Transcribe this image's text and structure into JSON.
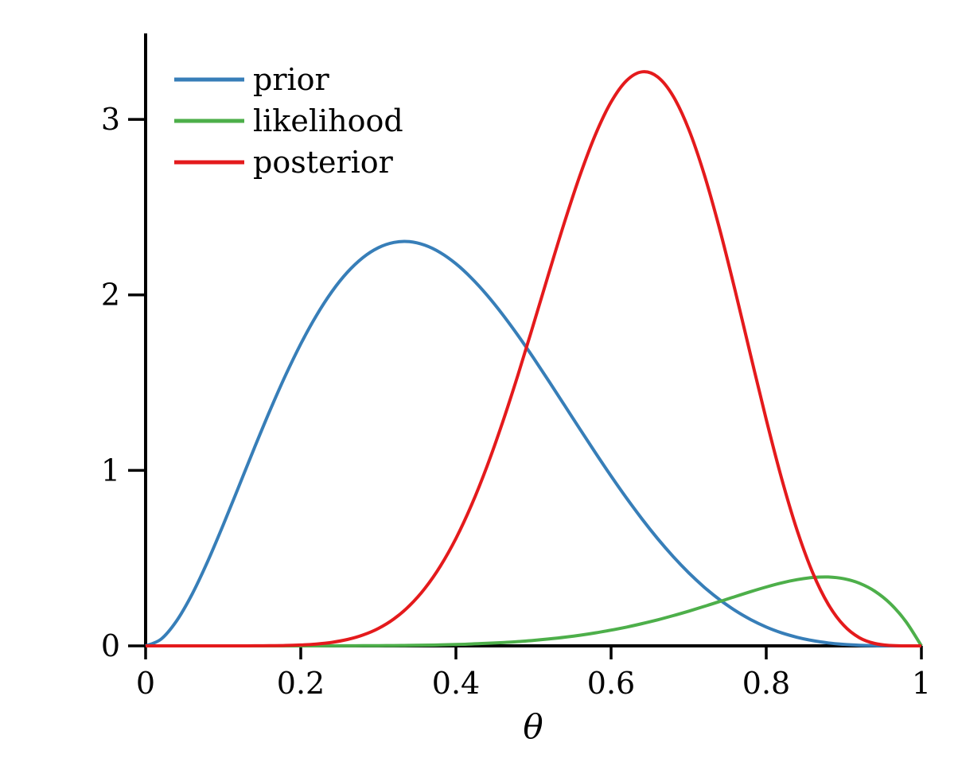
{
  "figure": {
    "background_color": "#ffffff",
    "axis_color": "#000000",
    "text_color": "#000000"
  },
  "chart_data": {
    "type": "line",
    "title": "",
    "xlabel": "θ",
    "ylabel": "",
    "xlim": [
      0,
      1
    ],
    "ylim": [
      0,
      3.49
    ],
    "grid": false,
    "legend_position": "top-left",
    "x_ticks": {
      "values": [
        0,
        0.2,
        0.4,
        0.6,
        0.8,
        1
      ],
      "labels": [
        "0",
        "0.2",
        "0.4",
        "0.6",
        "0.8",
        "1"
      ]
    },
    "y_ticks": {
      "values": [
        0,
        1,
        2,
        3
      ],
      "labels": [
        "0",
        "1",
        "2",
        "3"
      ]
    },
    "x": [
      0,
      0.02,
      0.04,
      0.06,
      0.08,
      0.1,
      0.12,
      0.14,
      0.16,
      0.18,
      0.2,
      0.22,
      0.24,
      0.26,
      0.28,
      0.3,
      0.32,
      0.34,
      0.36,
      0.38,
      0.4,
      0.42,
      0.44,
      0.46,
      0.48,
      0.5,
      0.52,
      0.54,
      0.56,
      0.58,
      0.6,
      0.62,
      0.64,
      0.66,
      0.68,
      0.7,
      0.72,
      0.74,
      0.76,
      0.78,
      0.8,
      0.82,
      0.84,
      0.86,
      0.88,
      0.9,
      0.92,
      0.94,
      0.96,
      0.98,
      1.0
    ],
    "series": [
      {
        "name": "prior",
        "color": "#377eb8",
        "peak": {
          "x": 0.33,
          "y": 2.3
        },
        "values": [
          0,
          0.0387,
          0.1427,
          0.2951,
          0.4814,
          0.6889,
          0.9067,
          1.1257,
          1.3383,
          1.5381,
          1.7203,
          1.8811,
          2.0177,
          2.1285,
          2.2123,
          2.269,
          2.2989,
          2.3033,
          2.2831,
          2.2404,
          2.1773,
          2.0959,
          1.9991,
          1.8891,
          1.7689,
          1.6406,
          1.5071,
          1.3707,
          1.2342,
          1.0992,
          0.9677,
          0.8416,
          0.7224,
          0.6111,
          0.5091,
          0.4167,
          0.3346,
          0.2628,
          0.2012,
          0.1496,
          0.1075,
          0.0741,
          0.0486,
          0.0298,
          0.0169,
          0.0085,
          0.0036,
          0.0012,
          0.0002,
          0.0,
          0
        ]
      },
      {
        "name": "likelihood",
        "color": "#4daf4a",
        "peak": {
          "x": 0.875,
          "y": 0.39
        },
        "values": [
          0,
          0,
          0,
          0,
          0,
          0,
          0,
          0,
          0,
          0,
          0.0001,
          0.0002,
          0.0003,
          0.0005,
          0.0008,
          0.0012,
          0.0019,
          0.0028,
          0.004,
          0.0057,
          0.0079,
          0.0107,
          0.0143,
          0.0188,
          0.0244,
          0.0313,
          0.0395,
          0.0493,
          0.0608,
          0.0742,
          0.0896,
          0.1071,
          0.1267,
          0.1484,
          0.1721,
          0.1977,
          0.2247,
          0.2527,
          0.2812,
          0.3092,
          0.3355,
          0.359,
          0.3777,
          0.3897,
          0.3923,
          0.3826,
          0.357,
          0.3113,
          0.2405,
          0.1389,
          0
        ]
      },
      {
        "name": "posterior",
        "color": "#e41a1c",
        "peak": {
          "x": 0.64,
          "y": 3.27
        },
        "values": [
          0,
          0,
          0,
          0,
          0,
          0,
          0.0001,
          0.0003,
          0.0009,
          0.0022,
          0.005,
          0.0105,
          0.0201,
          0.0362,
          0.0615,
          0.0993,
          0.1536,
          0.2283,
          0.3275,
          0.4546,
          0.6121,
          0.8016,
          1.0223,
          1.2716,
          1.5444,
          1.8329,
          2.1271,
          2.4149,
          2.6824,
          2.9151,
          3.099,
          3.221,
          3.2711,
          3.2422,
          3.1325,
          2.9447,
          2.6874,
          2.3742,
          2.0227,
          1.6539,
          1.2898,
          0.9511,
          0.6556,
          0.4156,
          0.2365,
          0.1163,
          0.0465,
          0.0134,
          0.0021,
          0.0001,
          0
        ]
      }
    ],
    "legend": [
      "prior",
      "likelihood",
      "posterior"
    ]
  }
}
